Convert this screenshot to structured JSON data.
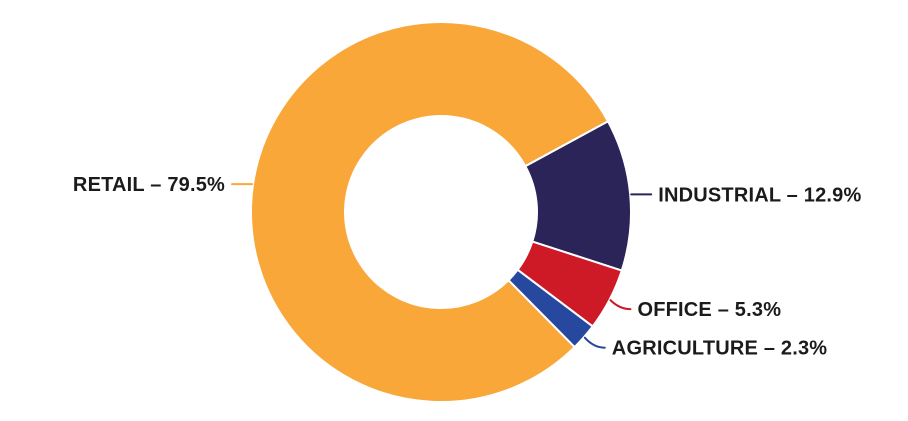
{
  "page": {
    "background": "#FFFFFF",
    "text_color": "#1B1B1B"
  },
  "chart_data": {
    "type": "pie",
    "subtype": "donut",
    "title": "",
    "categories": [
      "RETAIL",
      "INDUSTRIAL",
      "OFFICE",
      "AGRICULTURE"
    ],
    "values": [
      79.5,
      12.9,
      5.3,
      2.3
    ],
    "unit": "%",
    "series_colors": [
      "#F8A738",
      "#2A2458",
      "#CE1A26",
      "#26489E"
    ],
    "labels": [
      "RETAIL – 79.5%",
      "INDUSTRIAL – 12.9%",
      "OFFICE – 5.3%",
      "AGRICULTURE – 2.3%"
    ],
    "legend": "none",
    "layout": {
      "start_angle_deg": 135.3,
      "direction": "clockwise",
      "inner_radius_ratio": 0.505,
      "slice_gap_color": "#FFFFFF",
      "label_dy": [
        0,
        0,
        9,
        10
      ]
    }
  }
}
